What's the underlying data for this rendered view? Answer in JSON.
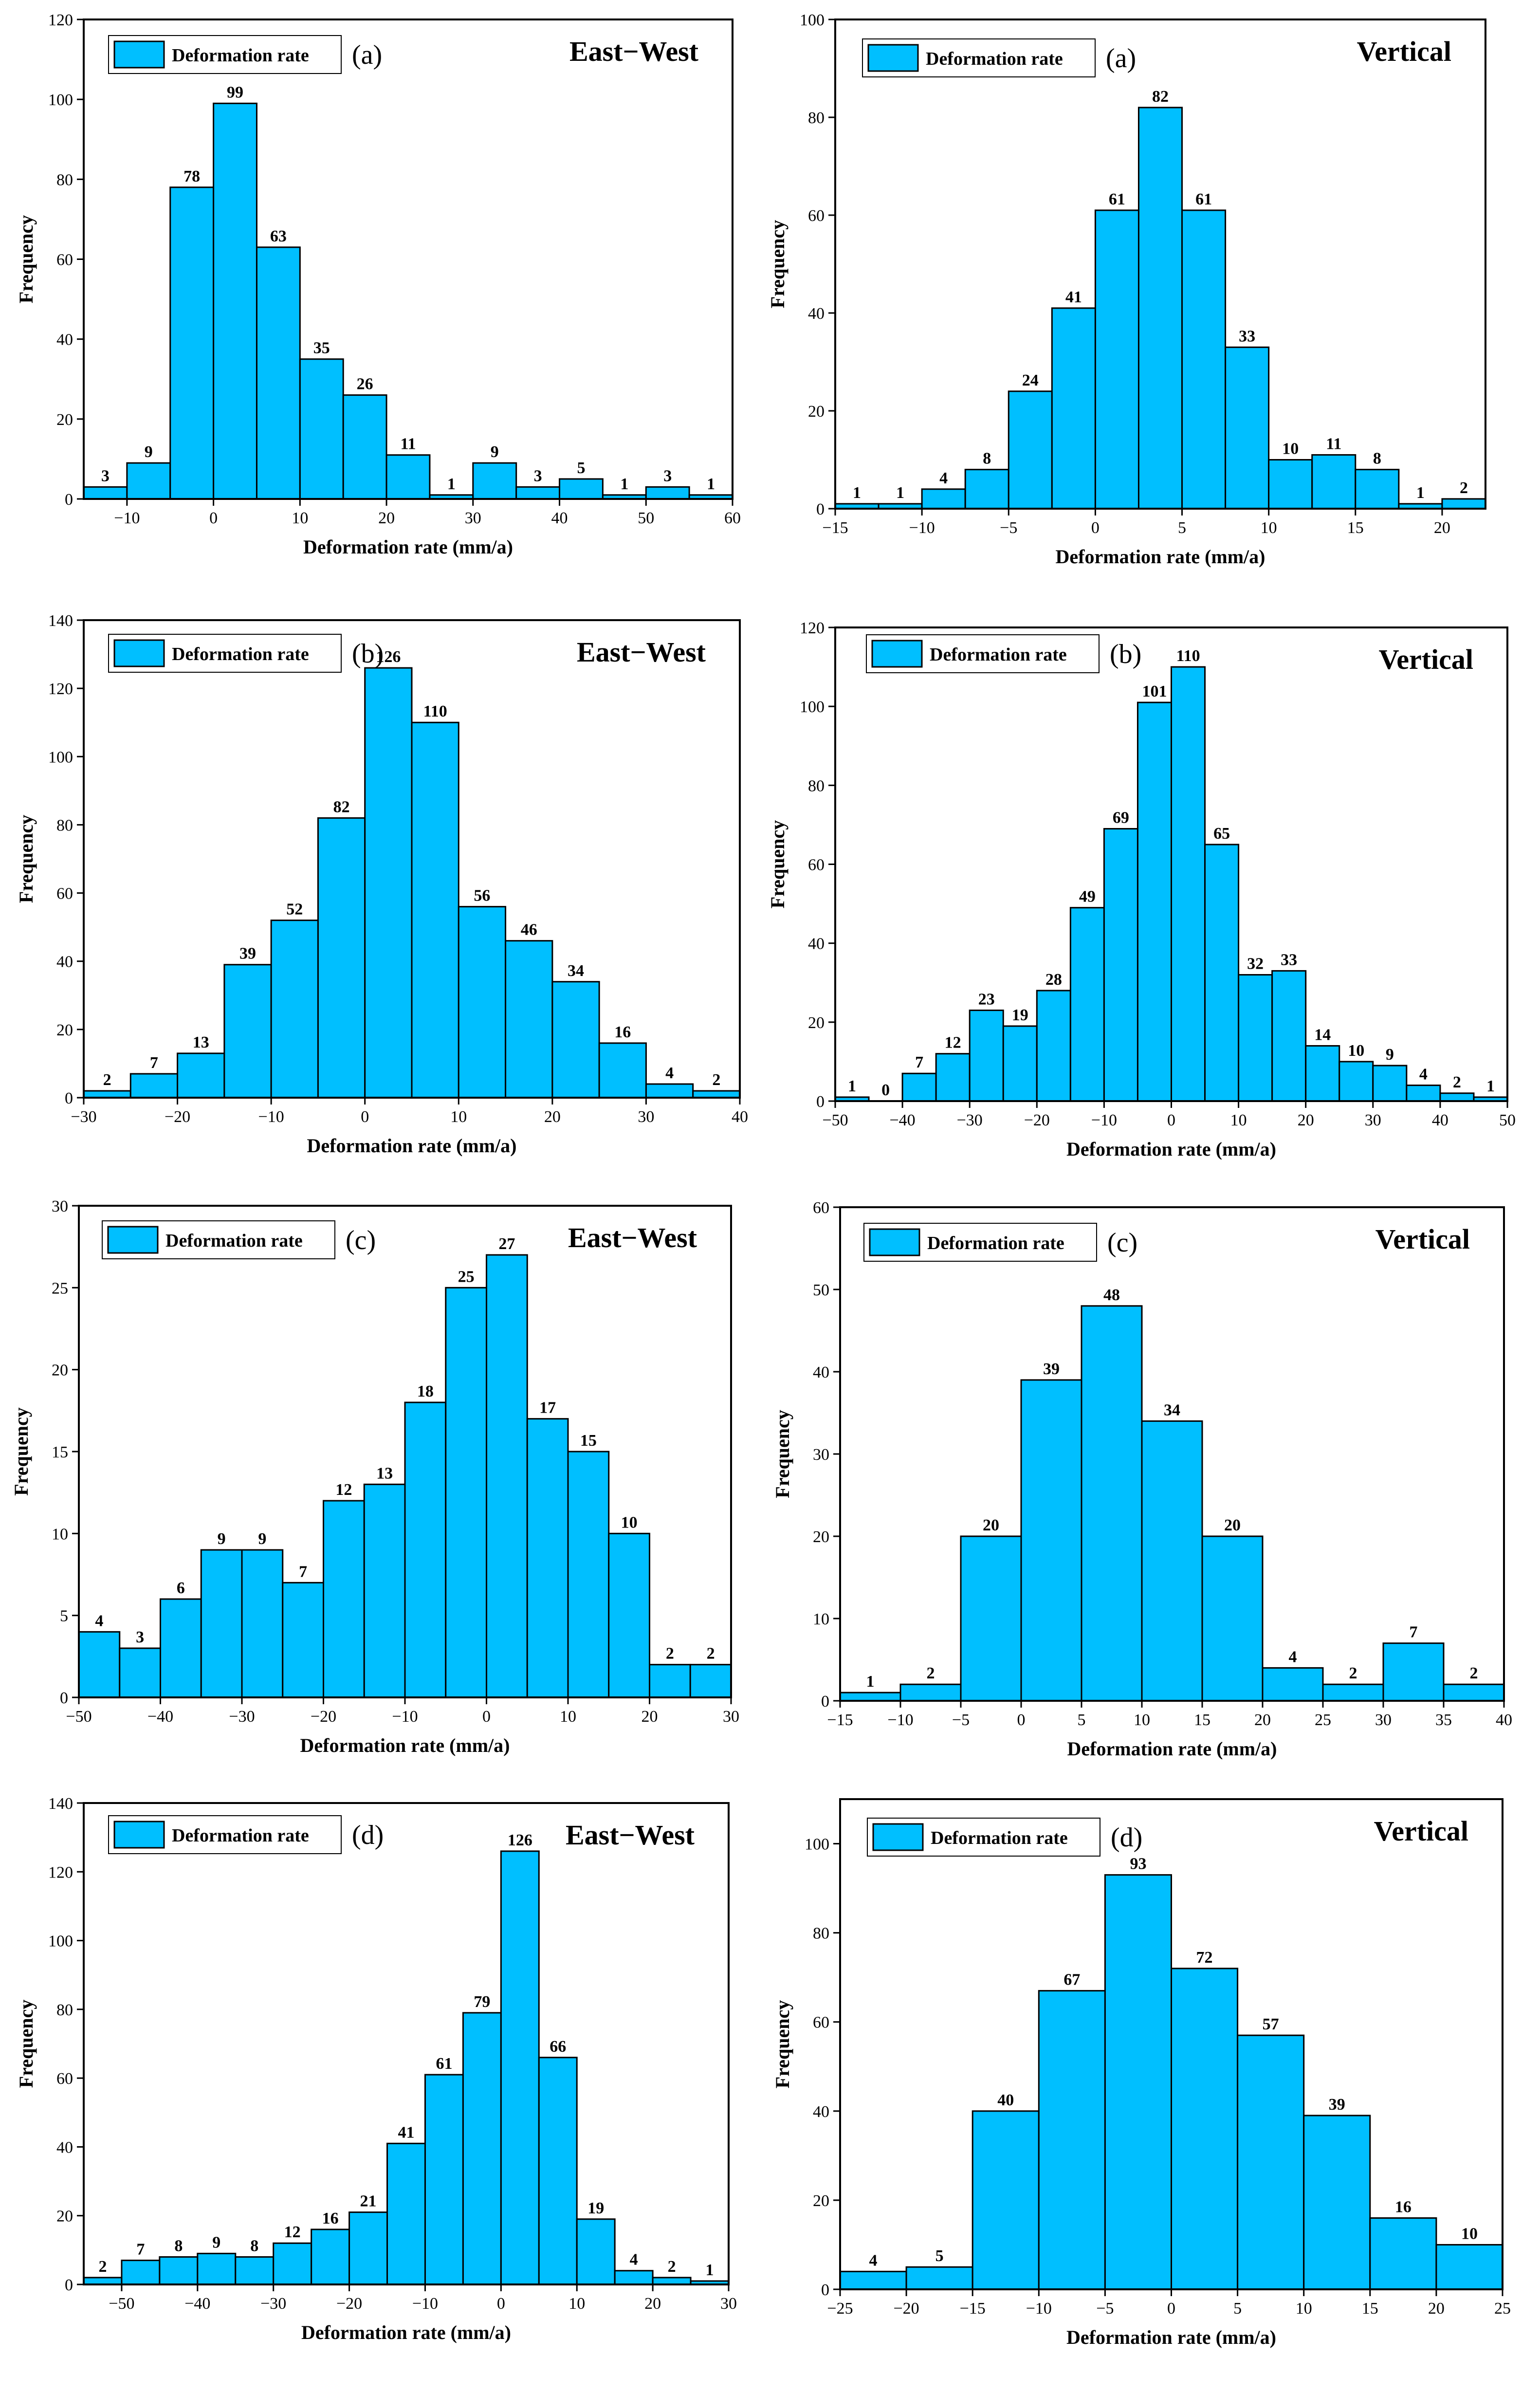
{
  "chart_data": [
    {
      "id": "a-ew",
      "type": "bar",
      "panel": "(a)",
      "title": "East−West",
      "legend": "Deformation rate",
      "xlabel": "Deformation rate (mm/a)",
      "ylabel": "Frequency",
      "xlim": [
        -15,
        60
      ],
      "ylim": [
        0,
        120
      ],
      "xticks": [
        -10,
        0,
        10,
        20,
        30,
        40,
        50,
        60
      ],
      "yticks": [
        0,
        20,
        40,
        60,
        80,
        100,
        120
      ],
      "bin_edges": [
        -15,
        -10,
        -5,
        0,
        5,
        10,
        15,
        20,
        25,
        30,
        35,
        40,
        45,
        50,
        55,
        60
      ],
      "values": [
        3,
        9,
        78,
        99,
        63,
        35,
        26,
        11,
        1,
        9,
        3,
        5,
        1,
        3,
        1
      ]
    },
    {
      "id": "a-v",
      "type": "bar",
      "panel": "(a)",
      "title": "Vertical",
      "legend": "Deformation rate",
      "xlabel": "Deformation rate (mm/a)",
      "ylabel": "Frequency",
      "xlim": [
        -15,
        22.5
      ],
      "ylim": [
        0,
        100
      ],
      "xticks": [
        -15,
        -10,
        -5,
        0,
        5,
        10,
        15,
        20
      ],
      "yticks": [
        0,
        20,
        40,
        60,
        80,
        100
      ],
      "bin_edges": [
        -15,
        -12.5,
        -10,
        -7.5,
        -5,
        -2.5,
        0,
        2.5,
        5,
        7.5,
        10,
        12.5,
        15,
        17.5,
        20,
        22.5
      ],
      "values": [
        1,
        1,
        4,
        8,
        24,
        41,
        61,
        82,
        61,
        33,
        10,
        11,
        8,
        1,
        2
      ]
    },
    {
      "id": "b-ew",
      "type": "bar",
      "panel": "(b)",
      "title": "East−West",
      "legend": "Deformation rate",
      "xlabel": "Deformation rate (mm/a)",
      "ylabel": "Frequency",
      "xlim": [
        -30,
        40
      ],
      "ylim": [
        0,
        140
      ],
      "xticks": [
        -30,
        -20,
        -10,
        0,
        10,
        20,
        30,
        40
      ],
      "yticks": [
        0,
        20,
        40,
        60,
        80,
        100,
        120,
        140
      ],
      "bin_edges": [
        -30,
        -25,
        -20,
        -15,
        -10,
        -5,
        0,
        5,
        10,
        15,
        20,
        25,
        30,
        35,
        40
      ],
      "values": [
        2,
        7,
        13,
        39,
        52,
        82,
        126,
        110,
        56,
        46,
        34,
        16,
        4,
        2
      ]
    },
    {
      "id": "b-v",
      "type": "bar",
      "panel": "(b)",
      "title": "Vertical",
      "legend": "Deformation rate",
      "xlabel": "Deformation rate (mm/a)",
      "ylabel": "Frequency",
      "xlim": [
        -50,
        50
      ],
      "ylim": [
        0,
        120
      ],
      "xticks": [
        -50,
        -40,
        -30,
        -20,
        -10,
        0,
        10,
        20,
        30,
        40,
        50
      ],
      "yticks": [
        0,
        20,
        40,
        60,
        80,
        100,
        120
      ],
      "bin_edges": [
        -50,
        -45,
        -40,
        -35,
        -30,
        -25,
        -20,
        -15,
        -10,
        -5,
        0,
        5,
        10,
        15,
        20,
        25,
        30,
        35,
        40,
        45,
        50
      ],
      "values": [
        1,
        0,
        7,
        12,
        23,
        19,
        28,
        49,
        69,
        101,
        110,
        65,
        32,
        33,
        14,
        10,
        9,
        4,
        2,
        1
      ]
    },
    {
      "id": "c-ew",
      "type": "bar",
      "panel": "(c)",
      "title": "East−West",
      "legend": "Deformation rate",
      "xlabel": "Deformation rate (mm/a)",
      "ylabel": "Frequency",
      "xlim": [
        -50,
        30
      ],
      "ylim": [
        0,
        30
      ],
      "xticks": [
        -50,
        -40,
        -30,
        -20,
        -10,
        0,
        10,
        20,
        30
      ],
      "yticks": [
        0,
        5,
        10,
        15,
        20,
        25,
        30
      ],
      "bin_edges": [
        -50,
        -45,
        -40,
        -35,
        -30,
        -25,
        -20,
        -15,
        -10,
        -5,
        0,
        5,
        10,
        15,
        20,
        25,
        30
      ],
      "values": [
        4,
        3,
        6,
        9,
        9,
        7,
        12,
        13,
        18,
        25,
        27,
        17,
        15,
        10,
        2,
        2
      ]
    },
    {
      "id": "c-v",
      "type": "bar",
      "panel": "(c)",
      "title": "Vertical",
      "legend": "Deformation rate",
      "xlabel": "Deformation rate (mm/a)",
      "ylabel": "Frequency",
      "xlim": [
        -15,
        40
      ],
      "ylim": [
        0,
        60
      ],
      "xticks": [
        -15,
        -10,
        -5,
        0,
        5,
        10,
        15,
        20,
        25,
        30,
        35,
        40
      ],
      "yticks": [
        0,
        10,
        20,
        30,
        40,
        50,
        60
      ],
      "bin_edges": [
        -15,
        -10,
        -5,
        0,
        5,
        10,
        15,
        20,
        25,
        30,
        35,
        40
      ],
      "values": [
        1,
        2,
        20,
        39,
        48,
        34,
        20,
        4,
        2,
        7,
        2
      ]
    },
    {
      "id": "d-ew",
      "type": "bar",
      "panel": "(d)",
      "title": "East−West",
      "legend": "Deformation rate",
      "xlabel": "Deformation rate (mm/a)",
      "ylabel": "Frequency",
      "xlim": [
        -55,
        30
      ],
      "ylim": [
        0,
        140
      ],
      "xticks": [
        -50,
        -40,
        -30,
        -20,
        -10,
        0,
        10,
        20,
        30
      ],
      "yticks": [
        0,
        20,
        40,
        60,
        80,
        100,
        120,
        140
      ],
      "bin_edges": [
        -55,
        -50,
        -45,
        -40,
        -35,
        -30,
        -25,
        -20,
        -15,
        -10,
        -5,
        0,
        5,
        10,
        15,
        20,
        25,
        30
      ],
      "values": [
        2,
        7,
        8,
        9,
        8,
        12,
        16,
        21,
        41,
        61,
        79,
        126,
        66,
        19,
        4,
        2,
        1
      ]
    },
    {
      "id": "d-v",
      "type": "bar",
      "panel": "(d)",
      "title": "Vertical",
      "legend": "Deformation rate",
      "xlabel": "Deformation rate (mm/a)",
      "ylabel": "Frequency",
      "xlim": [
        -25,
        25
      ],
      "ylim": [
        0,
        110
      ],
      "xticks": [
        -25,
        -20,
        -15,
        -10,
        -5,
        0,
        5,
        10,
        15,
        20,
        25
      ],
      "yticks": [
        0,
        20,
        40,
        60,
        80,
        100
      ],
      "bin_edges": [
        -25,
        -20,
        -15,
        -10,
        -5,
        0,
        5,
        10,
        15,
        20,
        25
      ],
      "values": [
        4,
        5,
        40,
        67,
        93,
        72,
        57,
        39,
        16,
        10
      ]
    }
  ]
}
